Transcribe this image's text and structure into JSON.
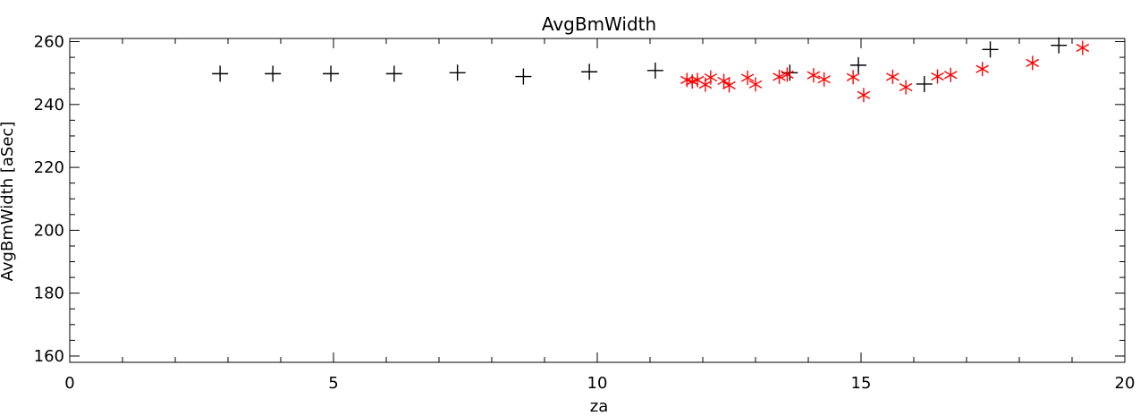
{
  "chart_data": {
    "type": "scatter",
    "title": "AvgBmWidth",
    "xlabel": "za",
    "ylabel": "AvgBmWidth [aSec]",
    "xlim": [
      0,
      20
    ],
    "ylim": [
      158,
      261
    ],
    "x_ticks": [
      0,
      5,
      10,
      15,
      20
    ],
    "y_ticks": [
      160,
      180,
      200,
      220,
      240,
      260
    ],
    "x_tick_labels": [
      "0",
      "5",
      "10",
      "15",
      "20"
    ],
    "y_tick_labels": [
      "160",
      "180",
      "200",
      "220",
      "240",
      "260"
    ],
    "grid": false,
    "legend": "none",
    "series": [
      {
        "marker": "plus",
        "color": "#000000",
        "points": [
          [
            2.85,
            249.8
          ],
          [
            3.85,
            249.8
          ],
          [
            4.95,
            249.8
          ],
          [
            6.15,
            249.8
          ],
          [
            7.35,
            250.1
          ],
          [
            8.6,
            248.9
          ],
          [
            9.85,
            250.4
          ],
          [
            11.1,
            250.8
          ],
          [
            13.65,
            250.1
          ],
          [
            14.95,
            252.5
          ],
          [
            16.2,
            246.5
          ],
          [
            17.45,
            257.5
          ],
          [
            18.75,
            258.8
          ]
        ]
      },
      {
        "marker": "asterisk",
        "color": "#ff0000",
        "points": [
          [
            11.7,
            247.8
          ],
          [
            11.8,
            247.3
          ],
          [
            11.9,
            247.8
          ],
          [
            12.05,
            246.3
          ],
          [
            12.15,
            248.6
          ],
          [
            12.4,
            247.5
          ],
          [
            12.5,
            246.1
          ],
          [
            12.85,
            248.5
          ],
          [
            13.0,
            246.4
          ],
          [
            13.45,
            248.8
          ],
          [
            13.6,
            249.5
          ],
          [
            14.1,
            249.3
          ],
          [
            14.3,
            248.0
          ],
          [
            14.85,
            248.7
          ],
          [
            15.05,
            243.0
          ],
          [
            15.6,
            248.8
          ],
          [
            15.85,
            245.5
          ],
          [
            16.45,
            248.9
          ],
          [
            16.7,
            249.4
          ],
          [
            17.3,
            251.3
          ],
          [
            18.25,
            253.2
          ],
          [
            19.2,
            258.0
          ]
        ]
      }
    ]
  }
}
